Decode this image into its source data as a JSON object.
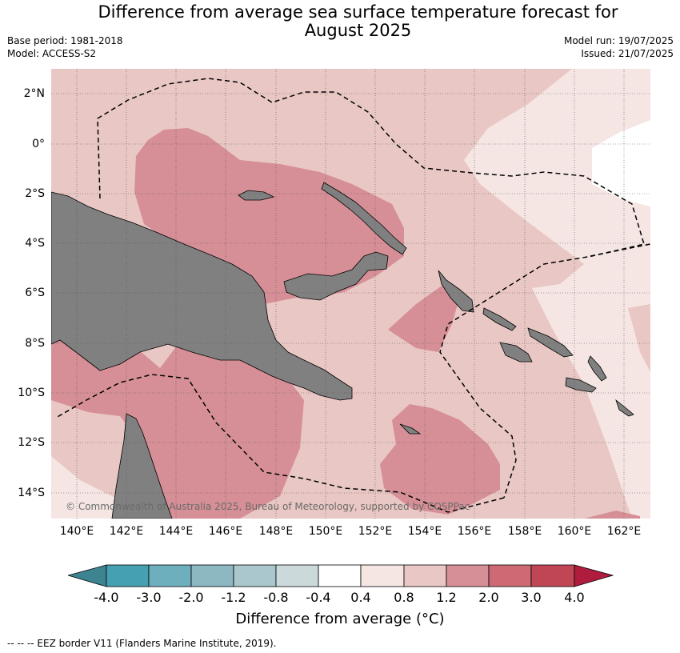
{
  "title_line1": "Difference from average sea surface temperature forecast for",
  "title_line2": "August 2025",
  "base_period": "Base period: 1981-2018",
  "model": "Model: ACCESS-S2",
  "model_run": "Model run: 19/07/2025",
  "issued": "Issued: 21/07/2025",
  "lat_labels": [
    "2°N",
    "0°",
    "2°S",
    "4°S",
    "6°S",
    "8°S",
    "10°S",
    "12°S",
    "14°S"
  ],
  "lon_labels": [
    "140°E",
    "142°E",
    "144°E",
    "146°E",
    "148°E",
    "150°E",
    "152°E",
    "154°E",
    "156°E",
    "158°E",
    "160°E",
    "162°E"
  ],
  "copyright": "© Commonwealth of Australia 2025, Bureau of Meteorology, supported by COSPPac",
  "colorbar": {
    "ticks": [
      "-4.0",
      "-3.0",
      "-2.0",
      "-1.2",
      "-0.8",
      "-0.4",
      "0.4",
      "0.8",
      "1.2",
      "2.0",
      "3.0",
      "4.0"
    ],
    "colors": [
      "#3d8390",
      "#45a1b1",
      "#6eafbe",
      "#8db7c1",
      "#a9c7cc",
      "#cbd9db",
      "#ffffff",
      "#f5e6e4",
      "#e9c7c4",
      "#d68f96",
      "#cd6a73",
      "#c04656",
      "#b01c3e"
    ],
    "label": "Difference from average (°C)"
  },
  "footnote": "--  --  -- EEZ border V11 (Flanders Marine Institute, 2019).",
  "colors": {
    "land": "#808080",
    "anom_04_08": "#f5e6e4",
    "anom_08_12": "#e9c7c4",
    "anom_12_20": "#d68f96",
    "anom_20_30": "#cd6a73",
    "neutral": "#ffffff"
  }
}
